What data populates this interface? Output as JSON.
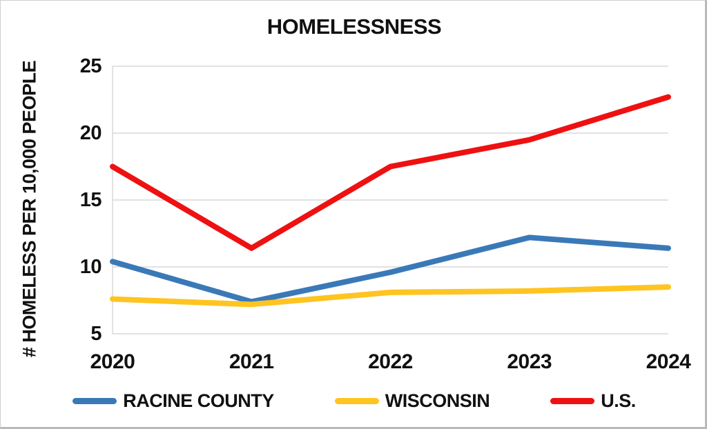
{
  "page": {
    "background": "#FFFFFF",
    "frame_border_color": "#BDBDBD"
  },
  "chart_data": {
    "type": "line",
    "title": "HOMELESSNESS",
    "xlabel": "",
    "ylabel": "# HOMELESS PER 10,000 PEOPLE",
    "x": [
      "2020",
      "2021",
      "2022",
      "2023",
      "2024"
    ],
    "series": [
      {
        "name": "RACINE COUNTY",
        "color": "#3A79B8",
        "values": [
          10.4,
          7.4,
          9.6,
          12.2,
          11.4
        ]
      },
      {
        "name": "WISCONSIN",
        "color": "#FFC420",
        "values": [
          7.6,
          7.2,
          8.1,
          8.2,
          8.5
        ]
      },
      {
        "name": "U.S.",
        "color": "#EE1111",
        "values": [
          17.5,
          11.4,
          17.5,
          19.5,
          22.7
        ]
      }
    ],
    "ylim": [
      5,
      25
    ],
    "yticks": [
      5,
      10,
      15,
      20,
      25
    ],
    "grid": "horizontal",
    "gridline_color": "#D9D9D9",
    "axis_line_color": "#D9D9D9",
    "line_width": 8,
    "text_color": "#111111",
    "legend_position": "bottom"
  }
}
